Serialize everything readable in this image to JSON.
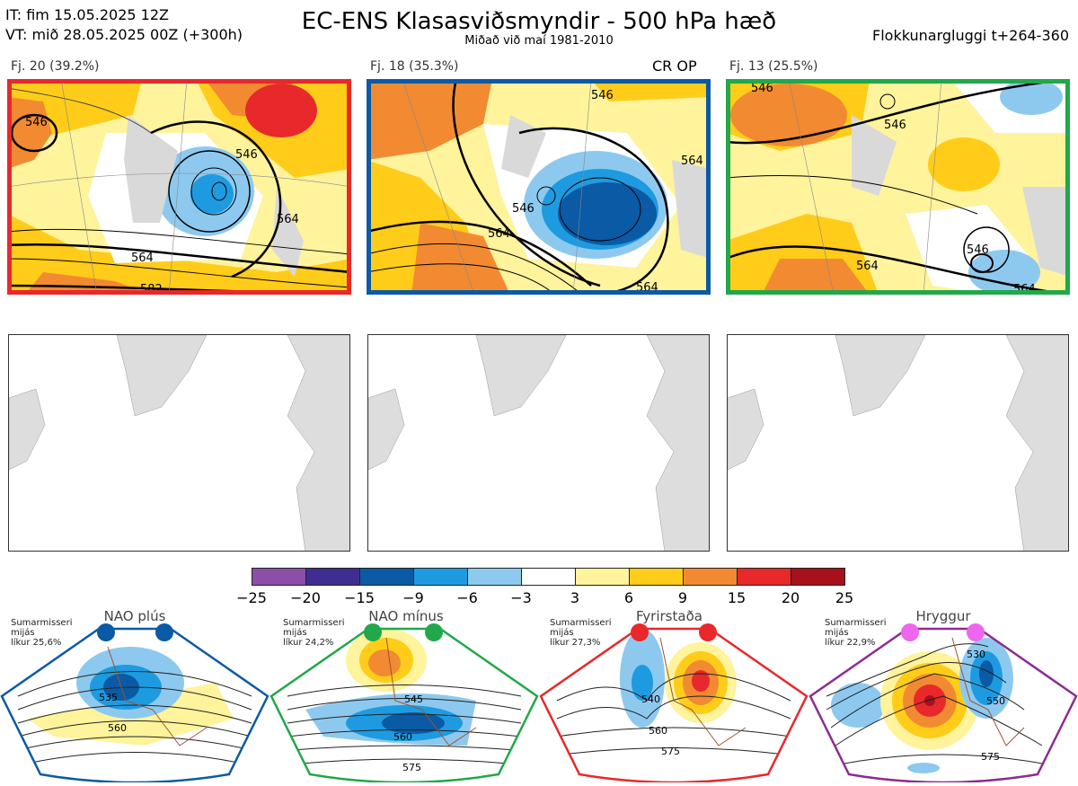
{
  "header": {
    "it_line": "IT: fim 15.05.2025 12Z",
    "vt_line": "VT: mið 28.05.2025 00Z  (+300h)",
    "title": "EC-ENS Klasasviðsmyndir - 500 hPa hæð",
    "subtitle": "Miðað við maí 1981-2010",
    "window": "Flokkunargluggi t+264-360"
  },
  "clusters": [
    {
      "label": "Fj. 20 (39.2%)",
      "frame_color": "#e8282b",
      "contours": [
        "546",
        "546",
        "564",
        "564",
        "582"
      ]
    },
    {
      "label": "Fj. 18 (35.3%)",
      "frame_color": "#0a5aa5",
      "badge": "CR OP",
      "contours": [
        "546",
        "546",
        "564",
        "564",
        "564"
      ]
    },
    {
      "label": "Fj. 13 (25.5%)",
      "frame_color": "#21a84a",
      "contours": [
        "546",
        "546",
        "546",
        "564",
        "564"
      ]
    }
  ],
  "colorbar": {
    "ticks": [
      "−25",
      "−20",
      "−15",
      "−9",
      "−6",
      "−3",
      "3",
      "6",
      "9",
      "15",
      "20",
      "25"
    ],
    "colors": [
      "#8b4fa8",
      "#3e2e91",
      "#0a5aa5",
      "#1e9be0",
      "#8dc9ef",
      "#ffffff",
      "#fff39c",
      "#ffcc1a",
      "#f28a32",
      "#e8282b",
      "#a6111b"
    ]
  },
  "regimes": [
    {
      "title": "NAO plús",
      "note": [
        "Sumarmisseri",
        "mijás",
        "líkur 25,6%"
      ],
      "frame_color": "#0a5aa5",
      "dot_color": "#0a5aa5",
      "contours": [
        "535",
        "560"
      ]
    },
    {
      "title": "NAO mínus",
      "note": [
        "Sumarmisseri",
        "mijás",
        "líkur 24,2%"
      ],
      "frame_color": "#21a84a",
      "dot_color": "#21a84a",
      "contours": [
        "545",
        "560",
        "575"
      ]
    },
    {
      "title": "Fyrirstaða",
      "note": [
        "Sumarmisseri",
        "mijás",
        "líkur 27,3%"
      ],
      "frame_color": "#e8282b",
      "dot_color": "#e8282b",
      "contours": [
        "540",
        "560",
        "575"
      ]
    },
    {
      "title": "Hryggur",
      "note": [
        "Sumarmisseri",
        "mijás",
        "líkur 22,9%"
      ],
      "frame_color": "#8c2c92",
      "dot_color": "#ee66ee",
      "contours": [
        "530",
        "550",
        "575"
      ]
    }
  ]
}
